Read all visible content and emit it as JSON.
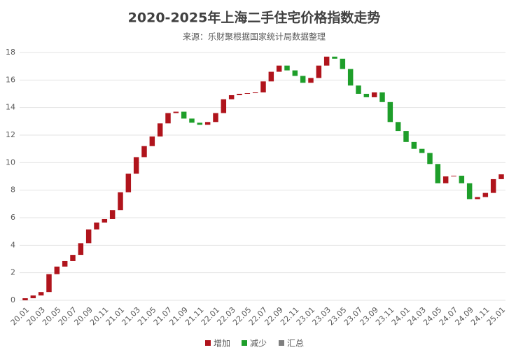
{
  "chart_data": {
    "type": "waterfall",
    "title": "2020-2025年上海二手住宅价格指数走势",
    "subtitle": "来源：乐财聚根据国家统计局数据整理",
    "categories": [
      "20.01",
      null,
      "20.03",
      null,
      "20.05",
      null,
      "20.07",
      null,
      "20.09",
      null,
      "20.11",
      null,
      "21.01",
      null,
      "21.03",
      null,
      "21.05",
      null,
      "21.07",
      null,
      "21.09",
      null,
      "21.11",
      null,
      "22.01",
      null,
      "22.03",
      null,
      "22.05",
      null,
      "22.07",
      null,
      "22.09",
      null,
      "22.11",
      null,
      "23.01",
      null,
      "23.03",
      null,
      "23.05",
      null,
      "23.07",
      null,
      "23.09",
      null,
      "23.11",
      null,
      "24.01",
      null,
      "24.03",
      null,
      "24.05",
      null,
      "24.07",
      null,
      "24.09",
      null,
      "24.11",
      null,
      "25.01"
    ],
    "values": [
      0.15,
      0.2,
      0.25,
      1.3,
      0.55,
      0.4,
      0.45,
      0.85,
      1.0,
      0.5,
      0.25,
      0.65,
      1.3,
      1.35,
      1.2,
      0.8,
      0.7,
      0.95,
      0.75,
      0.1,
      -0.5,
      -0.3,
      -0.15,
      0.2,
      0.65,
      1.0,
      0.3,
      0.1,
      0.05,
      0.05,
      0.8,
      0.7,
      0.45,
      -0.35,
      -0.4,
      -0.5,
      0.35,
      0.9,
      0.65,
      -0.15,
      -0.75,
      -1.2,
      -0.6,
      -0.25,
      0.35,
      -0.7,
      -1.45,
      -0.65,
      -0.8,
      -0.5,
      -0.3,
      -0.8,
      -1.4,
      0.5,
      0.05,
      -0.55,
      -1.15,
      0.15,
      0.3,
      1.0,
      0.35
    ],
    "legend": [
      {
        "name": "增加",
        "color": "#b0141c"
      },
      {
        "name": "减少",
        "color": "#1e9e2a"
      },
      {
        "name": "汇总",
        "color": "#7f7f7f"
      }
    ],
    "ylim": [
      0,
      18
    ],
    "yticks": [
      0,
      2,
      4,
      6,
      8,
      10,
      12,
      14,
      16,
      18
    ],
    "grid": true
  }
}
